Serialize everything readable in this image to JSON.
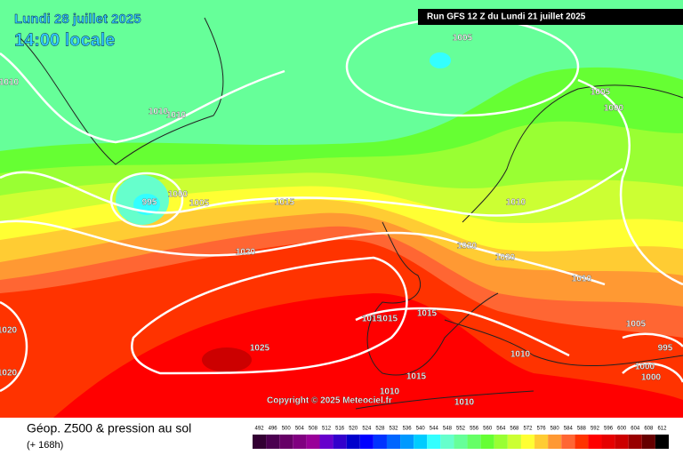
{
  "header": {
    "date": "Lundi 28 juillet 2025",
    "time": "14:00 locale",
    "run": "Run GFS 12 Z du Lundi 21 juillet 2025"
  },
  "copyright": "Copyright © 2025 Meteociel.fr",
  "footer": {
    "title": "Géop. Z500 & pression au sol",
    "lead": "(+ 168h)"
  },
  "isobar_labels": [
    1005,
    1010,
    1010,
    1010,
    995,
    1000,
    1005,
    1015,
    1020,
    1020,
    1010,
    1020,
    1010,
    1005,
    1000,
    1025,
    1015,
    1015,
    1015,
    1010,
    1015,
    1010,
    1010,
    1005,
    995,
    1000,
    1000,
    1020,
    1020
  ],
  "scale": {
    "labels": [
      492,
      496,
      500,
      504,
      508,
      512,
      516,
      520,
      524,
      528,
      532,
      536,
      540,
      544,
      548,
      552,
      556,
      560,
      564,
      568,
      572,
      576,
      580,
      584,
      588,
      592,
      596,
      600,
      604,
      608,
      612
    ],
    "colors": [
      "#330033",
      "#4b0050",
      "#660066",
      "#800080",
      "#990099",
      "#6600cc",
      "#3300cc",
      "#0000cc",
      "#0000ff",
      "#0033ff",
      "#0066ff",
      "#0099ff",
      "#00ccff",
      "#33ffff",
      "#66ffcc",
      "#66ff99",
      "#66ff66",
      "#66ff33",
      "#99ff33",
      "#ccff33",
      "#ffff33",
      "#ffcc33",
      "#ff9933",
      "#ff6633",
      "#ff3300",
      "#ff0000",
      "#e60000",
      "#cc0000",
      "#990000",
      "#660000",
      "#000000"
    ]
  }
}
